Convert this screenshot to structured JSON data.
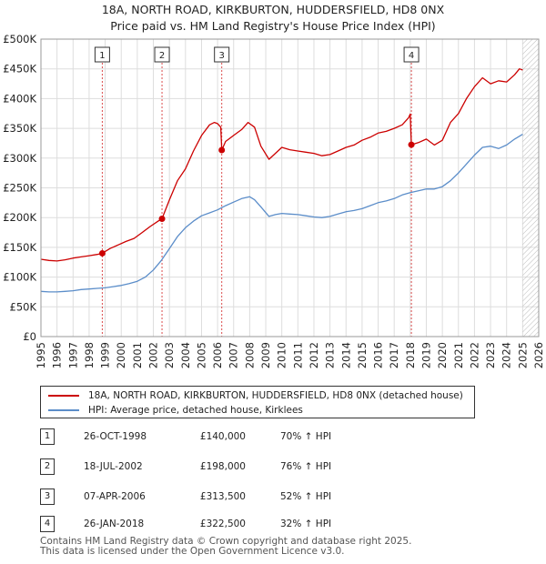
{
  "title_line1": "18A, NORTH ROAD, KIRKBURTON, HUDDERSFIELD, HD8 0NX",
  "title_line2": "Price paid vs. HM Land Registry's House Price Index (HPI)",
  "colors": {
    "red": "#cc0000",
    "blue": "#5b8dc9",
    "grid": "#dddddd",
    "marker_line": "#cc0000"
  },
  "legend": {
    "red_label": "18A, NORTH ROAD, KIRKBURTON, HUDDERSFIELD, HD8 0NX (detached house)",
    "blue_label": "HPI: Average price, detached house, Kirklees"
  },
  "sales": [
    {
      "num": "1",
      "date": "26-OCT-1998",
      "price": "£140,000",
      "hpi": "70% ↑ HPI"
    },
    {
      "num": "2",
      "date": "18-JUL-2002",
      "price": "£198,000",
      "hpi": "76% ↑ HPI"
    },
    {
      "num": "3",
      "date": "07-APR-2006",
      "price": "£313,500",
      "hpi": "52% ↑ HPI"
    },
    {
      "num": "4",
      "date": "26-JAN-2018",
      "price": "£322,500",
      "hpi": "32% ↑ HPI"
    }
  ],
  "footer_line1": "Contains HM Land Registry data © Crown copyright and database right 2025.",
  "footer_line2": "This data is licensed under the Open Government Licence v3.0.",
  "chart_data": {
    "type": "line",
    "title": "18A, NORTH ROAD, KIRKBURTON, HUDDERSFIELD, HD8 0NX — Price paid vs. HM Land Registry's House Price Index (HPI)",
    "xlabel": "",
    "ylabel": "",
    "xlim": [
      1995,
      2026
    ],
    "ylim": [
      0,
      500000
    ],
    "x_ticks": [
      1995,
      1996,
      1997,
      1998,
      1999,
      2000,
      2001,
      2002,
      2003,
      2004,
      2005,
      2006,
      2007,
      2008,
      2009,
      2010,
      2011,
      2012,
      2013,
      2014,
      2015,
      2016,
      2017,
      2018,
      2019,
      2020,
      2021,
      2022,
      2023,
      2024,
      2025,
      2026
    ],
    "y_ticks": [
      0,
      50000,
      100000,
      150000,
      200000,
      250000,
      300000,
      350000,
      400000,
      450000,
      500000
    ],
    "y_tick_labels": [
      "£0",
      "£50K",
      "£100K",
      "£150K",
      "£200K",
      "£250K",
      "£300K",
      "£350K",
      "£400K",
      "£450K",
      "£500K"
    ],
    "grid": true,
    "future_hatch_from": 2025.0,
    "series": [
      {
        "name": "18A, NORTH ROAD, KIRKBURTON, HUDDERSFIELD, HD8 0NX (detached house)",
        "color": "red",
        "x": [
          1995.0,
          1995.5,
          1996.0,
          1996.5,
          1997.0,
          1997.5,
          1998.0,
          1998.5,
          1998.82,
          1999.3,
          1999.8,
          2000.3,
          2000.8,
          2001.3,
          2001.8,
          2002.3,
          2002.54,
          2003.0,
          2003.5,
          2004.0,
          2004.5,
          2005.0,
          2005.5,
          2005.8,
          2006.0,
          2006.2,
          2006.26,
          2006.5,
          2007.0,
          2007.5,
          2007.9,
          2008.3,
          2008.7,
          2009.2,
          2009.6,
          2010.0,
          2010.5,
          2011.0,
          2011.5,
          2012.0,
          2012.5,
          2013.0,
          2013.5,
          2014.0,
          2014.5,
          2015.0,
          2015.5,
          2016.0,
          2016.5,
          2017.0,
          2017.5,
          2017.9,
          2018.0,
          2018.07,
          2018.5,
          2019.0,
          2019.5,
          2020.0,
          2020.5,
          2021.0,
          2021.5,
          2022.0,
          2022.5,
          2023.0,
          2023.5,
          2024.0,
          2024.5,
          2024.8,
          2025.0
        ],
        "values": [
          130000,
          128000,
          127000,
          129000,
          132000,
          134000,
          136000,
          138000,
          140000,
          148000,
          154000,
          160000,
          165000,
          175000,
          185000,
          194000,
          198000,
          230000,
          262000,
          282000,
          312000,
          338000,
          356000,
          360000,
          358000,
          352000,
          313500,
          328000,
          338000,
          348000,
          360000,
          352000,
          320000,
          298000,
          308000,
          318000,
          314000,
          312000,
          310000,
          308000,
          304000,
          306000,
          312000,
          318000,
          322000,
          330000,
          335000,
          342000,
          345000,
          350000,
          356000,
          368000,
          374000,
          322500,
          326000,
          332000,
          322000,
          330000,
          360000,
          375000,
          400000,
          420000,
          435000,
          425000,
          430000,
          428000,
          440000,
          450000,
          448000
        ]
      },
      {
        "name": "HPI: Average price, detached house, Kirklees",
        "color": "blue",
        "x": [
          1995.0,
          1995.5,
          1996.0,
          1996.5,
          1997.0,
          1997.5,
          1998.0,
          1998.5,
          1999.0,
          1999.5,
          2000.0,
          2000.5,
          2001.0,
          2001.5,
          2002.0,
          2002.5,
          2003.0,
          2003.5,
          2004.0,
          2004.5,
          2005.0,
          2005.5,
          2006.0,
          2006.5,
          2007.0,
          2007.5,
          2008.0,
          2008.3,
          2008.7,
          2009.2,
          2009.6,
          2010.0,
          2010.5,
          2011.0,
          2011.5,
          2012.0,
          2012.5,
          2013.0,
          2013.5,
          2014.0,
          2014.5,
          2015.0,
          2015.5,
          2016.0,
          2016.5,
          2017.0,
          2017.5,
          2018.0,
          2018.5,
          2019.0,
          2019.5,
          2020.0,
          2020.5,
          2021.0,
          2021.5,
          2022.0,
          2022.5,
          2023.0,
          2023.5,
          2024.0,
          2024.5,
          2025.0
        ],
        "values": [
          76000,
          75000,
          75000,
          76000,
          77000,
          79000,
          80000,
          81000,
          82000,
          84000,
          86000,
          89000,
          93000,
          100000,
          112000,
          128000,
          148000,
          168000,
          183000,
          194000,
          203000,
          208000,
          213000,
          220000,
          226000,
          232000,
          235000,
          230000,
          218000,
          202000,
          205000,
          207000,
          206000,
          205000,
          203000,
          201000,
          200000,
          202000,
          206000,
          210000,
          212000,
          215000,
          220000,
          225000,
          228000,
          232000,
          238000,
          242000,
          245000,
          248000,
          248000,
          252000,
          262000,
          275000,
          290000,
          305000,
          318000,
          320000,
          316000,
          322000,
          332000,
          340000
        ]
      }
    ],
    "sale_markers": [
      {
        "label": "1",
        "x": 1998.82,
        "y": 140000
      },
      {
        "label": "2",
        "x": 2002.54,
        "y": 198000
      },
      {
        "label": "3",
        "x": 2006.26,
        "y": 313500
      },
      {
        "label": "4",
        "x": 2018.07,
        "y": 322500
      }
    ]
  }
}
